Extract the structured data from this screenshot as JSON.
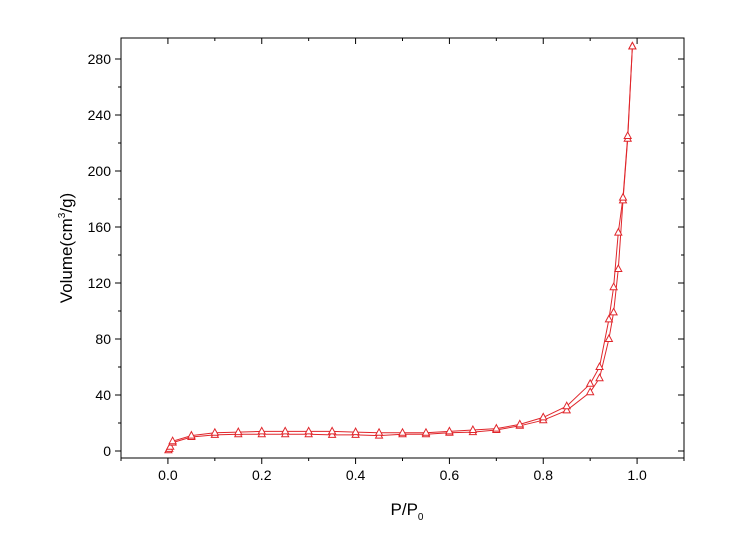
{
  "chart_data": {
    "type": "line",
    "xlabel_main": "P/P",
    "xlabel_sub": "0",
    "ylabel_pre": "Volume(cm",
    "ylabel_sup": "3",
    "ylabel_post": "/g)",
    "xlim": [
      -0.1,
      1.1
    ],
    "ylim": [
      -5,
      295
    ],
    "xticks": [
      0.0,
      0.2,
      0.4,
      0.6,
      0.8,
      1.0
    ],
    "xtick_labels": [
      "0.0",
      "0.2",
      "0.4",
      "0.6",
      "0.8",
      "1.0"
    ],
    "yticks": [
      0,
      40,
      80,
      120,
      160,
      200,
      240,
      280
    ],
    "ytick_labels": [
      "0",
      "40",
      "80",
      "120",
      "160",
      "200",
      "240",
      "280"
    ],
    "grid": false,
    "marker": "open-triangle",
    "color": "#e0262b",
    "series": [
      {
        "x": [
          0.001,
          0.003,
          0.005,
          0.01,
          0.05,
          0.1,
          0.15,
          0.2,
          0.25,
          0.3,
          0.35,
          0.4,
          0.45,
          0.5,
          0.55,
          0.6,
          0.65,
          0.7,
          0.75,
          0.8,
          0.85,
          0.9,
          0.92,
          0.94,
          0.95,
          0.96,
          0.97,
          0.98,
          0.99
        ],
        "y": [
          0.5,
          1.5,
          3,
          6,
          10,
          11.5,
          12,
          12,
          12,
          12,
          11.5,
          11.5,
          11,
          12,
          12,
          13,
          13.5,
          15,
          18,
          22,
          29,
          42,
          52,
          80,
          99,
          130,
          179,
          223,
          289
        ]
      },
      {
        "x": [
          0.99,
          0.98,
          0.97,
          0.96,
          0.95,
          0.94,
          0.92,
          0.9,
          0.85,
          0.8,
          0.75,
          0.7,
          0.65,
          0.6,
          0.55,
          0.5,
          0.45,
          0.4,
          0.35,
          0.3,
          0.25,
          0.2,
          0.15,
          0.1,
          0.05,
          0.01
        ],
        "y": [
          289,
          225,
          181,
          156,
          117,
          94,
          60,
          48,
          32,
          24,
          19,
          16,
          15,
          14,
          13,
          13,
          13,
          13.5,
          14,
          14,
          14,
          14,
          13.5,
          13,
          11,
          7
        ]
      }
    ]
  }
}
